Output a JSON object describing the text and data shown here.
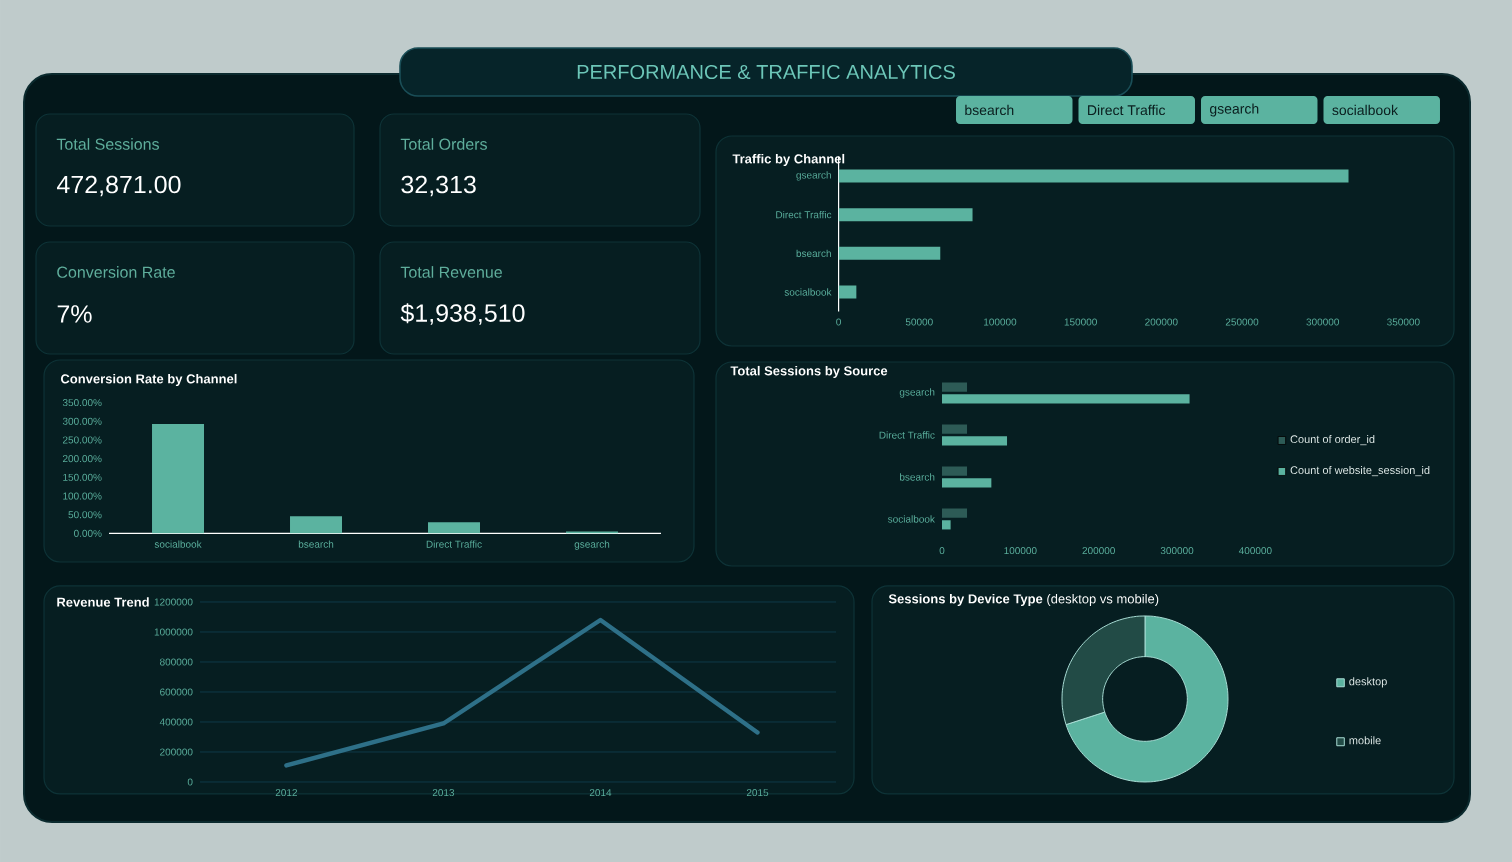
{
  "chart_data": [
    {
      "type": "other",
      "title": "PERFORMANCE & TRAFFIC ANALYTICS",
      "annotations": [
        "bsearch",
        "Direct Traffic",
        "gsearch",
        "socialbook"
      ]
    },
    {
      "type": "other",
      "annotations": [
        "Total Sessions",
        "472,871.00",
        "Total Orders",
        "32,313",
        "Conversion Rate",
        "7%",
        "Total Revenue",
        "$1,938,510"
      ]
    },
    {
      "type": "bar",
      "orientation": "horizontal",
      "title": "Traffic by Channel",
      "categories": [
        "gsearch",
        "Direct Traffic",
        "bsearch",
        "socialbook"
      ],
      "values": [
        316000,
        83000,
        63000,
        11000
      ],
      "color": "#5bb3a0",
      "xlim": [
        0,
        350000
      ],
      "xticks": [
        0,
        50000,
        100000,
        150000,
        200000,
        250000,
        300000,
        350000
      ]
    },
    {
      "type": "bar",
      "title": "Conversion Rate by Channel",
      "categories": [
        "socialbook",
        "bsearch",
        "Direct Traffic",
        "gsearch"
      ],
      "values": [
        293,
        46,
        30,
        5
      ],
      "color": "#5bb3a0",
      "ylim": [
        0,
        350
      ],
      "yticks": [
        {
          "value": 0,
          "label": "0.00%"
        },
        {
          "value": 50,
          "label": "50.00%"
        },
        {
          "value": 100,
          "label": "100.00%"
        },
        {
          "value": 150,
          "label": "150.00%"
        },
        {
          "value": 200,
          "label": "200.00%"
        },
        {
          "value": 250,
          "label": "250.00%"
        },
        {
          "value": 300,
          "label": "300.00%"
        },
        {
          "value": 350,
          "label": "350.00%"
        }
      ]
    },
    {
      "type": "bar",
      "orientation": "horizontal",
      "title": "Total Sessions by Source",
      "categories": [
        "gsearch",
        "Direct Traffic",
        "bsearch",
        "socialbook"
      ],
      "series": [
        {
          "name": "Count of order_id",
          "color": "#2d5b56",
          "values": [
            32000,
            32000,
            32000,
            32000
          ]
        },
        {
          "name": "Count of website_session_id",
          "color": "#5bb3a0",
          "values": [
            316000,
            83000,
            63000,
            11000
          ]
        }
      ],
      "xlim": [
        0,
        400000
      ],
      "xticks": [
        0,
        100000,
        200000,
        300000,
        400000
      ],
      "legend": "right"
    },
    {
      "type": "line",
      "title": "Revenue Trend",
      "categories": [
        "2012",
        "2013",
        "2014",
        "2015"
      ],
      "values": [
        110000,
        390000,
        1080000,
        330000
      ],
      "color": "#2e7088",
      "ylim": [
        0,
        1200000
      ],
      "yticks": [
        0,
        200000,
        400000,
        600000,
        800000,
        1000000,
        1200000
      ],
      "grid": "y"
    },
    {
      "type": "donut",
      "title": "**Sessions by Device Type** (desktop vs mobile)",
      "categories": [
        "desktop",
        "mobile"
      ],
      "values": [
        70,
        30
      ],
      "colors": [
        "#5bb3a0",
        "#224b46"
      ],
      "legend": "right"
    }
  ]
}
